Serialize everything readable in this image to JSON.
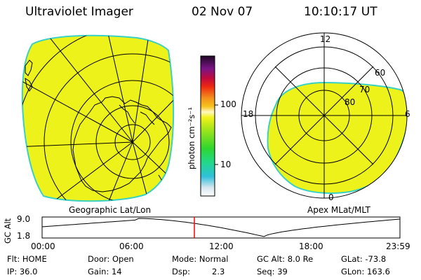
{
  "header": {
    "instrument": "Ultraviolet Imager",
    "date": "02 Nov 07",
    "time": "10:10:17 UT"
  },
  "left_map": {
    "label": "Geographic Lat/Lon",
    "fill_color": "#ecf21a",
    "edge_color": "#39d1c4"
  },
  "colorbar": {
    "unit_label": "photon cm⁻²s⁻¹",
    "ticks": [
      "100",
      "10"
    ],
    "scale": "log"
  },
  "right_map": {
    "label": "Apex MLat/MLT",
    "mlt_labels": [
      "12",
      "18",
      "6",
      "0"
    ],
    "mlat_labels": [
      "60",
      "70",
      "80"
    ],
    "fill_color": "#ecf21a",
    "edge_color": "#39d1c4"
  },
  "gc_alt_plot": {
    "ylabel": "GC Alt",
    "y_ticks": [
      "9.0",
      "1.8"
    ],
    "x_ticks": [
      "00:00",
      "06:00",
      "12:00",
      "18:00",
      "23:59"
    ],
    "marker_color": "#ff0000"
  },
  "info": {
    "flt": "Flt: HOME",
    "ip": "IP: 36.0",
    "door": "Door: Open",
    "gain": "Gain: 14",
    "mode": "Mode: Normal",
    "dsp_label": "Dsp:",
    "dsp_value": "2.3",
    "gc_alt": "GC Alt: 8.0 Re",
    "seq": "Seq: 39",
    "glat": "GLat: -73.8",
    "glon": "GLon: 163.6"
  }
}
